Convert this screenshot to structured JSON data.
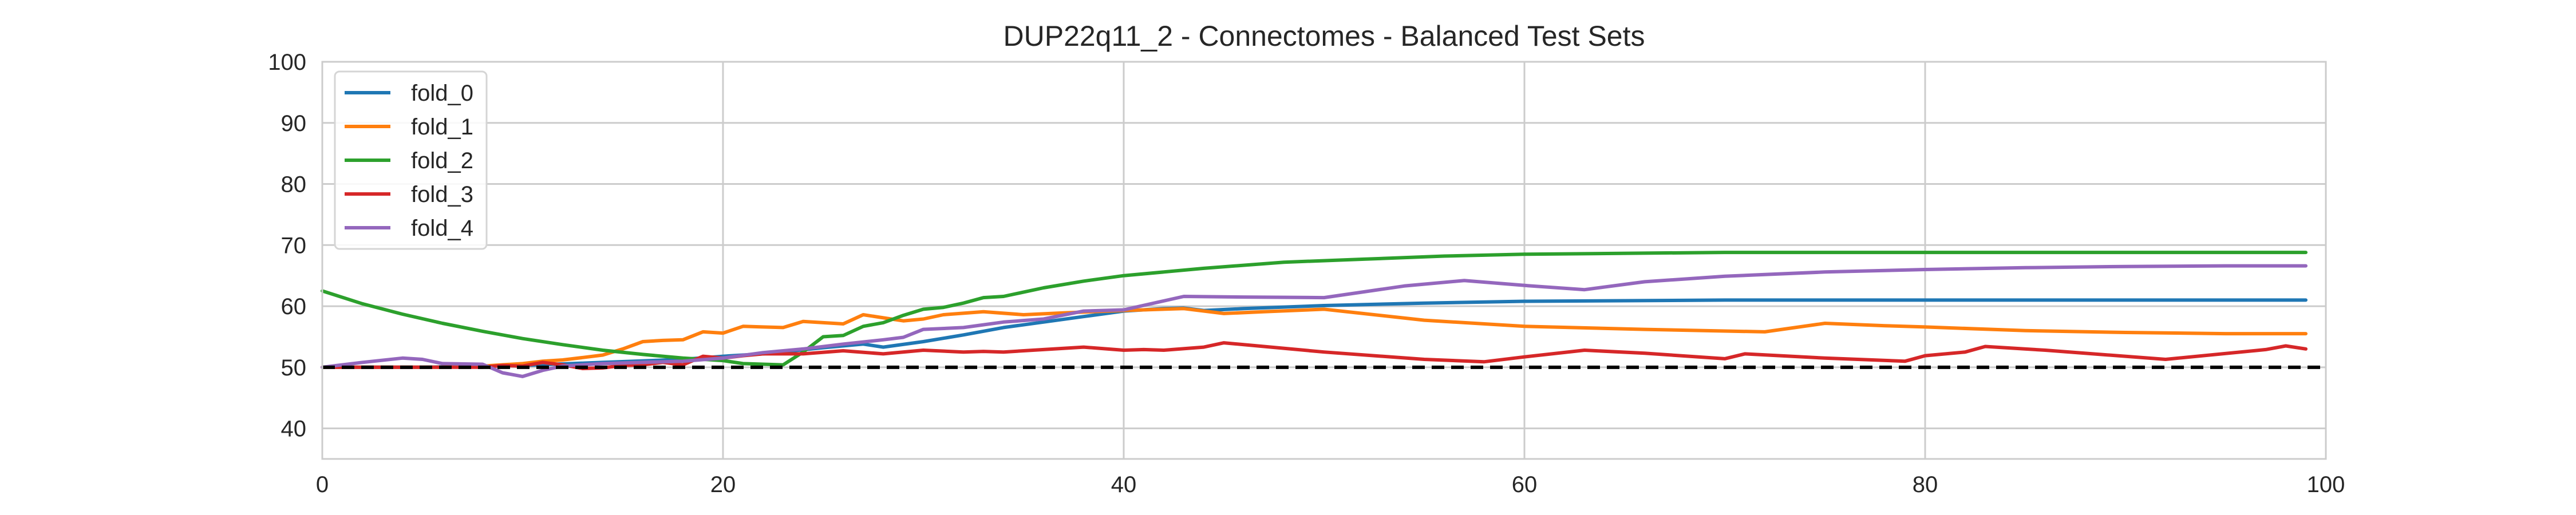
{
  "chart_data": {
    "type": "line",
    "title": "DUP22q11_2 - Connectomes - Balanced Test Sets",
    "xlabel": "",
    "ylabel": "",
    "xlim": [
      0,
      100
    ],
    "ylim": [
      35,
      100
    ],
    "xticks": [
      0,
      20,
      40,
      60,
      80,
      100
    ],
    "yticks": [
      40,
      50,
      60,
      70,
      80,
      90,
      100
    ],
    "grid": true,
    "legend_position": "top-left",
    "reference_line": {
      "y": 50,
      "style": "dashed",
      "color": "#000000"
    },
    "series": [
      {
        "name": "fold_0",
        "color": "#1f77b4",
        "points": [
          [
            0,
            50
          ],
          [
            5,
            50
          ],
          [
            10,
            50.3
          ],
          [
            14,
            50.8
          ],
          [
            18,
            51.3
          ],
          [
            20,
            51.8
          ],
          [
            22,
            52.2
          ],
          [
            25,
            53.2
          ],
          [
            27,
            53.8
          ],
          [
            28,
            53.3
          ],
          [
            30,
            54.2
          ],
          [
            32,
            55.3
          ],
          [
            34,
            56.5
          ],
          [
            36,
            57.4
          ],
          [
            38,
            58.3
          ],
          [
            40,
            59.2
          ],
          [
            42,
            59.6
          ],
          [
            43,
            59.7
          ],
          [
            44,
            59.3
          ],
          [
            46,
            59.6
          ],
          [
            50,
            60.1
          ],
          [
            55,
            60.5
          ],
          [
            60,
            60.8
          ],
          [
            65,
            60.9
          ],
          [
            70,
            61
          ],
          [
            75,
            61
          ],
          [
            80,
            61
          ],
          [
            85,
            61
          ],
          [
            90,
            61
          ],
          [
            95,
            61
          ],
          [
            99,
            61
          ]
        ]
      },
      {
        "name": "fold_1",
        "color": "#ff7f0e",
        "points": [
          [
            0,
            50
          ],
          [
            2,
            50
          ],
          [
            4,
            50
          ],
          [
            6,
            50
          ],
          [
            8,
            50.2
          ],
          [
            10,
            50.6
          ],
          [
            11,
            51
          ],
          [
            12,
            51.2
          ],
          [
            13,
            51.6
          ],
          [
            14,
            52
          ],
          [
            15,
            53
          ],
          [
            16,
            54.2
          ],
          [
            17,
            54.4
          ],
          [
            18,
            54.5
          ],
          [
            19,
            55.8
          ],
          [
            20,
            55.6
          ],
          [
            21,
            56.7
          ],
          [
            22,
            56.6
          ],
          [
            23,
            56.5
          ],
          [
            24,
            57.5
          ],
          [
            25,
            57.3
          ],
          [
            26,
            57.1
          ],
          [
            27,
            58.6
          ],
          [
            28,
            58.1
          ],
          [
            29,
            57.6
          ],
          [
            30,
            57.9
          ],
          [
            31,
            58.6
          ],
          [
            33,
            59.1
          ],
          [
            35,
            58.6
          ],
          [
            37,
            58.9
          ],
          [
            40,
            59.3
          ],
          [
            43,
            59.6
          ],
          [
            45,
            58.8
          ],
          [
            47,
            59.1
          ],
          [
            50,
            59.5
          ],
          [
            55,
            57.7
          ],
          [
            60,
            56.7
          ],
          [
            66,
            56.2
          ],
          [
            72,
            55.8
          ],
          [
            75,
            57.2
          ],
          [
            78,
            56.8
          ],
          [
            80,
            56.6
          ],
          [
            85,
            56
          ],
          [
            90,
            55.7
          ],
          [
            95,
            55.5
          ],
          [
            99,
            55.5
          ]
        ]
      },
      {
        "name": "fold_2",
        "color": "#2ca02c",
        "points": [
          [
            0,
            62.5
          ],
          [
            2,
            60.4
          ],
          [
            4,
            58.7
          ],
          [
            6,
            57.2
          ],
          [
            8,
            55.9
          ],
          [
            10,
            54.7
          ],
          [
            12,
            53.7
          ],
          [
            14,
            52.8
          ],
          [
            16,
            52.1
          ],
          [
            18,
            51.5
          ],
          [
            20,
            51.1
          ],
          [
            21,
            50.6
          ],
          [
            22,
            50.5
          ],
          [
            23,
            50.4
          ],
          [
            24,
            52.5
          ],
          [
            25,
            55
          ],
          [
            26,
            55.2
          ],
          [
            27,
            56.7
          ],
          [
            28,
            57.3
          ],
          [
            29,
            58.5
          ],
          [
            30,
            59.5
          ],
          [
            31,
            59.8
          ],
          [
            32,
            60.5
          ],
          [
            33,
            61.4
          ],
          [
            34,
            61.6
          ],
          [
            36,
            63
          ],
          [
            38,
            64.1
          ],
          [
            40,
            65
          ],
          [
            44,
            66.2
          ],
          [
            48,
            67.2
          ],
          [
            52,
            67.7
          ],
          [
            56,
            68.2
          ],
          [
            60,
            68.5
          ],
          [
            70,
            68.8
          ],
          [
            80,
            68.8
          ],
          [
            90,
            68.8
          ],
          [
            99,
            68.8
          ]
        ]
      },
      {
        "name": "fold_3",
        "color": "#d62728",
        "points": [
          [
            0,
            50
          ],
          [
            2,
            50
          ],
          [
            4,
            50
          ],
          [
            6,
            50
          ],
          [
            8,
            50
          ],
          [
            9,
            50.3
          ],
          [
            10,
            50.2
          ],
          [
            11,
            50.8
          ],
          [
            12,
            50.4
          ],
          [
            13,
            49.8
          ],
          [
            14,
            49.9
          ],
          [
            15,
            50.3
          ],
          [
            16,
            50.4
          ],
          [
            17,
            50.8
          ],
          [
            18,
            50.4
          ],
          [
            19,
            51.8
          ],
          [
            20,
            51.5
          ],
          [
            21,
            51.9
          ],
          [
            22,
            52.2
          ],
          [
            24,
            52.2
          ],
          [
            26,
            52.7
          ],
          [
            28,
            52.2
          ],
          [
            30,
            52.8
          ],
          [
            32,
            52.5
          ],
          [
            33,
            52.6
          ],
          [
            34,
            52.5
          ],
          [
            36,
            52.9
          ],
          [
            38,
            53.3
          ],
          [
            40,
            52.8
          ],
          [
            41,
            52.9
          ],
          [
            42,
            52.8
          ],
          [
            44,
            53.3
          ],
          [
            45,
            54
          ],
          [
            47,
            53.4
          ],
          [
            50,
            52.5
          ],
          [
            55,
            51.3
          ],
          [
            58,
            50.9
          ],
          [
            60,
            51.7
          ],
          [
            63,
            52.8
          ],
          [
            66,
            52.3
          ],
          [
            70,
            51.4
          ],
          [
            71,
            52.2
          ],
          [
            75,
            51.5
          ],
          [
            79,
            51
          ],
          [
            80,
            51.9
          ],
          [
            82,
            52.5
          ],
          [
            83,
            53.4
          ],
          [
            86,
            52.8
          ],
          [
            92,
            51.3
          ],
          [
            97,
            52.9
          ],
          [
            98,
            53.5
          ],
          [
            99,
            53
          ]
        ]
      },
      {
        "name": "fold_4",
        "color": "#9467bd",
        "points": [
          [
            0,
            50
          ],
          [
            2,
            50.8
          ],
          [
            4,
            51.5
          ],
          [
            5,
            51.3
          ],
          [
            6,
            50.6
          ],
          [
            8,
            50.5
          ],
          [
            9,
            49.1
          ],
          [
            10,
            48.5
          ],
          [
            11,
            49.5
          ],
          [
            12,
            50.2
          ],
          [
            14,
            50.6
          ],
          [
            16,
            50.8
          ],
          [
            18,
            51
          ],
          [
            20,
            51.5
          ],
          [
            22,
            52.4
          ],
          [
            24,
            53
          ],
          [
            26,
            53.8
          ],
          [
            28,
            54.5
          ],
          [
            29,
            54.9
          ],
          [
            30,
            56.2
          ],
          [
            32,
            56.5
          ],
          [
            34,
            57.4
          ],
          [
            36,
            57.9
          ],
          [
            38,
            59.2
          ],
          [
            40,
            59.4
          ],
          [
            43,
            61.6
          ],
          [
            46,
            61.5
          ],
          [
            50,
            61.4
          ],
          [
            54,
            63.3
          ],
          [
            57,
            64.2
          ],
          [
            60,
            63.4
          ],
          [
            63,
            62.7
          ],
          [
            66,
            64
          ],
          [
            70,
            64.9
          ],
          [
            75,
            65.6
          ],
          [
            80,
            66
          ],
          [
            85,
            66.3
          ],
          [
            90,
            66.5
          ],
          [
            95,
            66.6
          ],
          [
            99,
            66.6
          ]
        ]
      }
    ]
  }
}
